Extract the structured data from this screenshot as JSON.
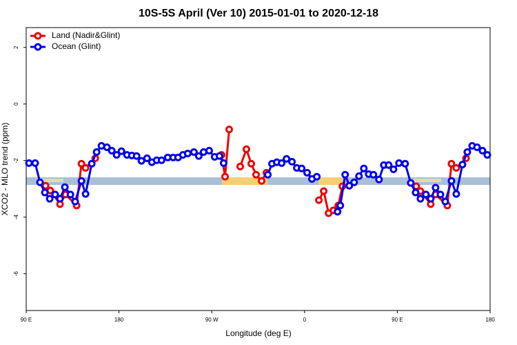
{
  "chart_data": {
    "type": "line",
    "title": "10S-5S April (Ver 10)   2015-01-01 to 2020-12-18",
    "x_label": "Longitude (deg E)",
    "y_label": "XCO2 - MLO trend (ppm)",
    "xlim": [
      90,
      540
    ],
    "ylim": [
      -7.3,
      2.7
    ],
    "xticks": [
      {
        "value": 90,
        "label": "90 E"
      },
      {
        "value": 180,
        "label": "180"
      },
      {
        "value": 270,
        "label": "90 W"
      },
      {
        "value": 360,
        "label": "0"
      },
      {
        "value": 450,
        "label": "90 E"
      },
      {
        "value": 540,
        "label": "180"
      }
    ],
    "yticks": [
      -6,
      -4,
      -2,
      0,
      2
    ],
    "legend": "top-left",
    "series": [
      {
        "name": "Land (Nadir&Glint)",
        "color": "#ee0000",
        "x": [
          108.8,
          113.4,
          122.8,
          128.2,
          138.9,
          143.6,
          147.6,
          157.0,
          null,
          279.5,
          282.9,
          286.9,
          null,
          297.6,
          303.6,
          308.3,
          313.0,
          318.4,
          323.0,
          null,
          373.9,
          378.6,
          383.3,
          388.0,
          392.7,
          396.7,
          null,
          468.4,
          472.4,
          482.4,
          487.1,
          498.5,
          502.5,
          507.2,
          516.6
        ],
        "values": [
          -2.89,
          -3.06,
          -3.54,
          -3.2,
          -3.59,
          -2.11,
          -2.26,
          -1.92,
          null,
          -1.8,
          -2.57,
          -0.9,
          null,
          -2.21,
          -1.6,
          -2.11,
          -2.5,
          -2.72,
          -2.43,
          null,
          -3.4,
          -3.08,
          -3.86,
          -3.76,
          -3.59,
          -2.91,
          null,
          -2.91,
          -3.08,
          -3.54,
          -3.2,
          -3.59,
          -2.11,
          -2.26,
          -1.92
        ]
      },
      {
        "name": "Ocean (Glint)",
        "color": "#0000ee",
        "x": [
          92.7,
          98.7,
          103.4,
          108.1,
          112.8,
          118.1,
          122.8,
          127.5,
          132.9,
          137.5,
          143.6,
          147.6,
          153.6,
          158.3,
          163.0,
          168.3,
          173.0,
          177.7,
          182.4,
          187.8,
          192.5,
          197.1,
          201.8,
          207.2,
          211.9,
          216.6,
          221.3,
          227.3,
          232.6,
          237.3,
          242.0,
          246.7,
          252.7,
          257.4,
          262.1,
          267.5,
          272.8,
          277.5,
          281.5,
          null,
          324.4,
          328.4,
          333.1,
          337.8,
          342.5,
          347.8,
          352.5,
          357.2,
          362.5,
          367.2,
          371.9,
          null,
          392.0,
          394.7,
          399.4,
          403.4,
          408.1,
          412.8,
          417.5,
          422.2,
          426.8,
          432.2,
          436.9,
          441.6,
          446.3,
          451.6,
          457.6,
          463.0,
          467.7,
          472.4,
          477.7,
          482.4,
          487.1,
          491.8,
          496.5,
          502.5,
          507.2,
          513.2,
          517.9,
          522.6,
          527.3,
          532.6,
          537.3
        ],
        "values": [
          -2.09,
          -2.09,
          -2.77,
          -3.13,
          -3.35,
          -3.2,
          -3.35,
          -2.94,
          -3.2,
          -3.45,
          -2.72,
          -3.18,
          -2.11,
          -1.7,
          -1.48,
          -1.53,
          -1.65,
          -1.8,
          -1.67,
          -1.8,
          -1.82,
          -1.84,
          -2.01,
          -1.92,
          -2.06,
          -1.99,
          -1.99,
          -1.89,
          -1.89,
          -1.89,
          -1.8,
          -1.75,
          -1.7,
          -1.84,
          -1.7,
          -1.65,
          -1.87,
          -1.84,
          -2.09,
          null,
          -2.5,
          -2.11,
          -2.06,
          -2.09,
          -1.94,
          -2.04,
          -2.26,
          -2.28,
          -2.43,
          -2.65,
          -2.57,
          null,
          -3.81,
          -3.59,
          -2.5,
          -2.89,
          -2.77,
          -2.55,
          -2.28,
          -2.48,
          -2.5,
          -2.67,
          -2.16,
          -2.16,
          -2.31,
          -2.09,
          -2.11,
          -2.79,
          -3.13,
          -3.35,
          -3.2,
          -3.35,
          -2.96,
          -3.2,
          -3.45,
          -2.72,
          -3.18,
          -2.14,
          -1.7,
          -1.48,
          -1.53,
          -1.65,
          -1.8
        ]
      }
    ]
  }
}
